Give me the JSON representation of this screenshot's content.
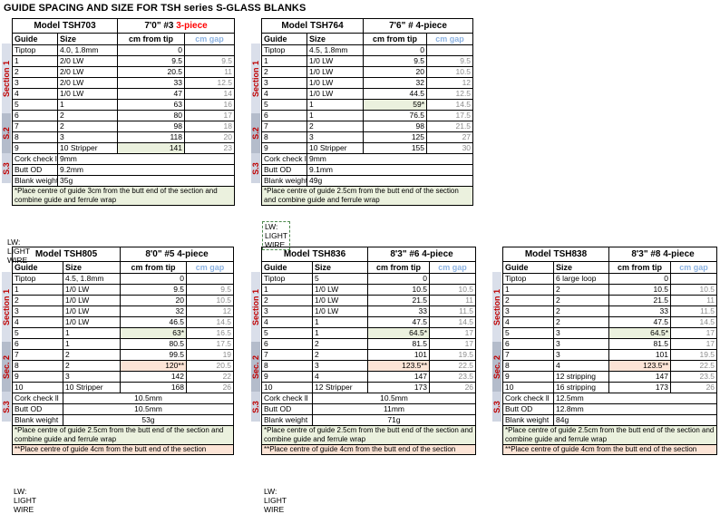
{
  "page_title": "GUIDE SPACING AND SIZE FOR TSH series S-GLASS BLANKS",
  "legend": "LW: LIGHT WIRE",
  "colors": {
    "section_label": "#c00000",
    "highlight_green": "#ebf1de",
    "highlight_orange": "#fce4d6",
    "gap_header": "#8db3e2"
  },
  "tables": {
    "tsh703": {
      "model": "Model TSH703",
      "length": "7'0\" #3",
      "pieces": "3-piece",
      "headers": [
        "Guide",
        "Size",
        "cm from tip",
        "cm gap"
      ],
      "sections": [
        "Section 1",
        "S.2",
        "S.3"
      ],
      "rows": [
        [
          "Tiptop",
          "4.0, 1.8mm",
          "0",
          ""
        ],
        [
          "1",
          "2/0 LW",
          "9.5",
          "9.5"
        ],
        [
          "2",
          "2/0 LW",
          "20.5",
          "11"
        ],
        [
          "3",
          "2/0 LW",
          "33",
          "12.5"
        ],
        [
          "4",
          "1/0 LW",
          "47",
          "14"
        ],
        [
          "5",
          "1",
          "63",
          "16"
        ],
        [
          "6",
          "2",
          "80",
          "17"
        ],
        [
          "7",
          "2",
          "98",
          "18"
        ],
        [
          "8",
          "3",
          "118",
          "20"
        ],
        [
          "9",
          "10 Stripper",
          "141",
          "23"
        ]
      ],
      "cork_label": "Cork check ll",
      "cork": "9mm",
      "butt_label": "Butt OD",
      "butt": "9.2mm",
      "blank_label": "Blank weight",
      "blank": "35g",
      "note1": "*Place centre of guide 3cm from the butt end of the section and combine guide and ferrule wrap"
    },
    "tsh764": {
      "model": "Model TSH764",
      "length": "7'6\" # 4-piece",
      "headers": [
        "Guide",
        "Size",
        "cm from tip",
        "cm gap"
      ],
      "sections": [
        "Section 1",
        "S.2",
        "S.3"
      ],
      "rows": [
        [
          "Tiptop",
          "4.5, 1.8mm",
          "0",
          ""
        ],
        [
          "1",
          "1/0 LW",
          "9.5",
          "9.5"
        ],
        [
          "2",
          "1/0 LW",
          "20",
          "10.5"
        ],
        [
          "3",
          "1/0 LW",
          "32",
          "12"
        ],
        [
          "4",
          "1/0 LW",
          "44.5",
          "12.5"
        ],
        [
          "5",
          "1",
          "59*",
          "14.5"
        ],
        [
          "6",
          "1",
          "76.5",
          "17.5"
        ],
        [
          "7",
          "2",
          "98",
          "21.5"
        ],
        [
          "8",
          "3",
          "125",
          "27"
        ],
        [
          "9",
          "10 Stripper",
          "155",
          "30"
        ]
      ],
      "cork_label": "Cork check ll",
      "cork": "9mm",
      "butt_label": "Butt OD",
      "butt": "9.1mm",
      "blank_label": "Blank weight",
      "blank": "49g",
      "note1": "*Place centre of guide 2.5cm from the butt end of the section and combine guide and ferrule wrap"
    },
    "tsh805": {
      "model": "Model TSH805",
      "length": "8'0\" #5 4-piece",
      "headers": [
        "Guide",
        "Size",
        "cm from tip",
        "cm gap"
      ],
      "sections": [
        "Section 1",
        "Sec. 2",
        "S.3"
      ],
      "rows": [
        [
          "Tiptop",
          "4.5, 1.8mm",
          "0",
          ""
        ],
        [
          "1",
          "1/0 LW",
          "9.5",
          "9.5"
        ],
        [
          "2",
          "1/0 LW",
          "20",
          "10.5"
        ],
        [
          "3",
          "1/0 LW",
          "32",
          "12"
        ],
        [
          "4",
          "1/0 LW",
          "46.5",
          "14.5"
        ],
        [
          "5",
          "1",
          "63*",
          "16.5"
        ],
        [
          "6",
          "1",
          "80.5",
          "17.5"
        ],
        [
          "7",
          "2",
          "99.5",
          "19"
        ],
        [
          "8",
          "2",
          "120**",
          "20.5"
        ],
        [
          "9",
          "3",
          "142",
          "22"
        ],
        [
          "10",
          "10 Stripper",
          "168",
          "26"
        ]
      ],
      "cork_label": "Cork check ll",
      "cork": "10.5mm",
      "butt_label": "Butt OD",
      "butt": "10.5mm",
      "blank_label": "Blank weight",
      "blank": "53g",
      "note1": "*Place centre of guide 2.5cm from the butt end of the section and combine guide and ferrule wrap",
      "note2": "**Place centre of guide 4cm from the butt end of the section"
    },
    "tsh836": {
      "model": "Model TSH836",
      "length": "8'3\" #6 4-piece",
      "headers": [
        "Guide",
        "Size",
        "cm from tip",
        "cm gap"
      ],
      "sections": [
        "Section 1",
        "Sec. 2",
        "S.3"
      ],
      "rows": [
        [
          "Tiptop",
          "5",
          "0",
          ""
        ],
        [
          "1",
          "1/0 LW",
          "10.5",
          "10.5"
        ],
        [
          "2",
          "1/0 LW",
          "21.5",
          "11"
        ],
        [
          "3",
          "1/0 LW",
          "33",
          "11.5"
        ],
        [
          "4",
          "1",
          "47.5",
          "14.5"
        ],
        [
          "5",
          "1",
          "64.5*",
          "17"
        ],
        [
          "6",
          "2",
          "81.5",
          "17"
        ],
        [
          "7",
          "2",
          "101",
          "19.5"
        ],
        [
          "8",
          "3",
          "123.5**",
          "22.5"
        ],
        [
          "9",
          "4",
          "147",
          "23.5"
        ],
        [
          "10",
          "12 Stripper",
          "173",
          "26"
        ]
      ],
      "cork_label": "Cork check ll",
      "cork": "10.5mm",
      "butt_label": "Butt OD",
      "butt": "11mm",
      "blank_label": "Blank weight",
      "blank": "71g",
      "note1": "*Place centre of guide 2.5cm from the butt end of the section and combine guide and ferrule wrap",
      "note2": "**Place centre of guide 4cm from the butt end of the section"
    },
    "tsh838": {
      "model": "Model TSH838",
      "length": "8'3\" #8 4-piece",
      "headers": [
        "Guide",
        "Size",
        "cm from tip",
        "cm gap"
      ],
      "sections": [
        "Section 1",
        "Sec. 2",
        "S.3"
      ],
      "rows": [
        [
          "Tiptop",
          "6 large loop",
          "0",
          ""
        ],
        [
          "1",
          "2",
          "10.5",
          "10.5"
        ],
        [
          "2",
          "2",
          "21.5",
          "11"
        ],
        [
          "3",
          "2",
          "33",
          "11.5"
        ],
        [
          "4",
          "2",
          "47.5",
          "14.5"
        ],
        [
          "5",
          "3",
          "64.5*",
          "17"
        ],
        [
          "6",
          "3",
          "81.5",
          "17"
        ],
        [
          "7",
          "3",
          "101",
          "19.5"
        ],
        [
          "8",
          "4",
          "123.5**",
          "22.5"
        ],
        [
          "9",
          "12 stripping",
          "147",
          "23.5"
        ],
        [
          "10",
          "16 stripping",
          "173",
          "26"
        ]
      ],
      "cork_label": "Cork check ll",
      "cork": "12.5mm",
      "butt_label": "Butt OD",
      "butt": "12.8mm",
      "blank_label": "Blank weight",
      "blank": "84g",
      "note1": "*Place centre of guide 2.5cm from the butt end of the section and combine guide and ferrule wrap",
      "note2": "**Place centre of guide 4cm from the butt end of the section"
    }
  }
}
